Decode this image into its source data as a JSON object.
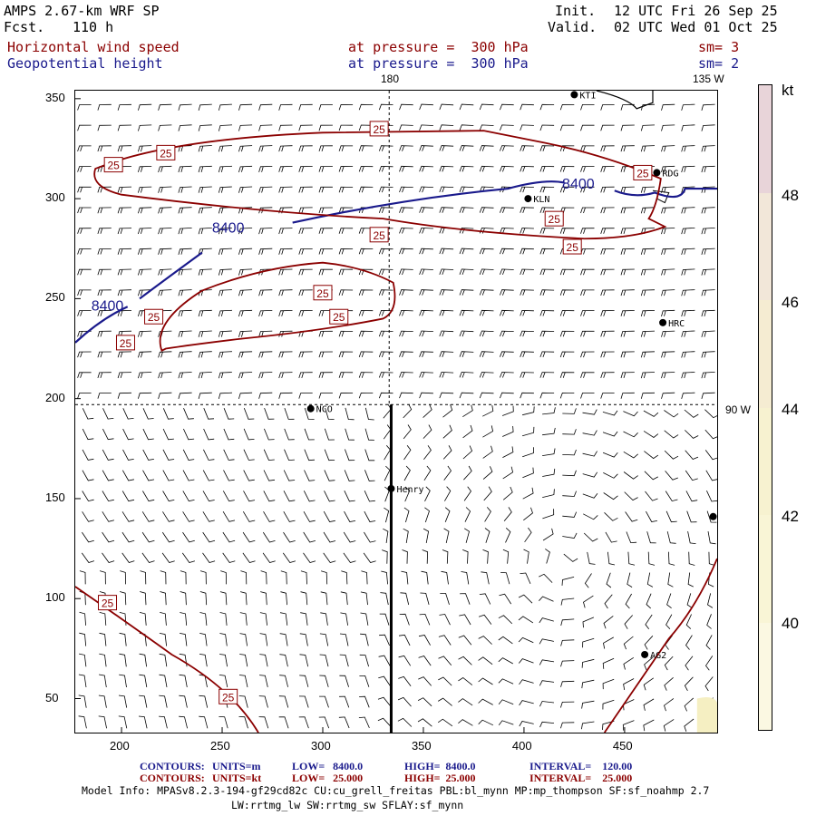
{
  "header": {
    "model_title": "AMPS 2.67-km WRF SP",
    "forecast_label": "Fcst.",
    "forecast_hours": "110 h",
    "init_label": "Init.",
    "init_time": "12 UTC Fri 26 Sep 25",
    "valid_label": "Valid.",
    "valid_time": "02 UTC Wed 01 Oct 25"
  },
  "fields": [
    {
      "name": "Horizontal wind speed",
      "level_text": "at pressure =  300 hPa",
      "smoothing": "sm= 3",
      "color": "#8b0000"
    },
    {
      "name": "Geopotential height",
      "level_text": "at pressure =  300 hPa",
      "smoothing": "sm= 2",
      "color": "#1a1a8c"
    }
  ],
  "map": {
    "x_ticks": [
      200,
      250,
      300,
      350,
      400,
      450
    ],
    "y_ticks": [
      50,
      100,
      150,
      200,
      250,
      300,
      350
    ],
    "x_range": [
      177,
      496
    ],
    "y_range": [
      33,
      354
    ],
    "meridian_labels": [
      {
        "text": "180",
        "lon_x": 333
      },
      {
        "text": "135 W",
        "lon_x": 479
      },
      {
        "text": "90 W",
        "lat_y": 197
      }
    ],
    "stations": [
      {
        "id": "KTI",
        "x": 425,
        "y": 352
      },
      {
        "id": "RDG",
        "x": 466,
        "y": 313
      },
      {
        "id": "KLN",
        "x": 402,
        "y": 300
      },
      {
        "id": "HRC",
        "x": 469,
        "y": 238
      },
      {
        "id": "NCO",
        "x": 294,
        "y": 195
      },
      {
        "id": "Henry",
        "x": 334,
        "y": 155
      },
      {
        "id": "AG2",
        "x": 460,
        "y": 72
      },
      {
        "id": "",
        "x": 494,
        "y": 141
      }
    ],
    "height_contour_labels": [
      "8400",
      "8400",
      "8400"
    ],
    "wind_contour_labels": [
      "25",
      "25",
      "25",
      "25",
      "25",
      "25",
      "25",
      "25",
      "25",
      "25",
      "25",
      "25",
      "25"
    ],
    "colors": {
      "wind_contour": "#8b0000",
      "height_contour": "#1a1a8c",
      "barb": "#000000",
      "fill": "#f5efc2"
    }
  },
  "colorbar": {
    "unit": "kt",
    "ticks": [
      "48",
      "46",
      "44",
      "42",
      "40"
    ],
    "colors": [
      "#e8d4d9",
      "#f2e7d9",
      "#f5ecd2",
      "#f7f2d0",
      "#f9f5d6",
      "#fbf8e2"
    ]
  },
  "footer": {
    "rows": [
      {
        "title": "CONTOURS:",
        "units": "UNITS=m",
        "low": "LOW=   8400.0",
        "high": "HIGH=  8400.0",
        "interval": "INTERVAL=    120.00",
        "color": "#1a1a8c"
      },
      {
        "title": "CONTOURS:",
        "units": "UNITS=kt",
        "low": "LOW=   25.000",
        "high": "HIGH=  25.000",
        "interval": "INTERVAL=    25.000",
        "color": "#8b0000"
      }
    ],
    "model_info_line1": "Model Info: MPASv8.2.3-194-gf29cd82c CU:cu_grell_freitas PBL:bl_mynn MP:mp_thompson SF:sf_noahmp 2.7",
    "model_info_line2": "LW:rrtmg_lw SW:rrtmg_sw SFLAY:sf_mynn"
  }
}
